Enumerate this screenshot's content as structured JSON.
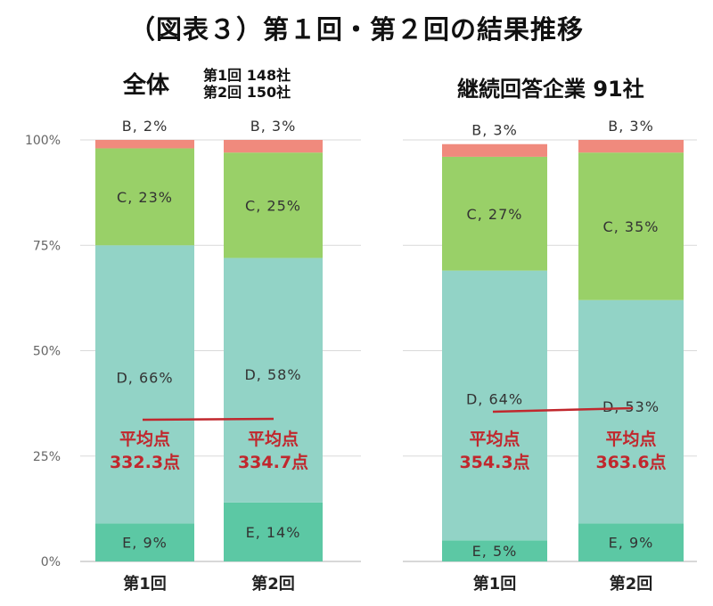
{
  "title": "（図表３）第１回・第２回の結果推移",
  "panels": [
    {
      "title": "全体",
      "sample_lines": [
        "第1回 148社",
        "第2回 150社"
      ]
    },
    {
      "title": "継続回答企業 91社",
      "sample_lines": []
    }
  ],
  "colors": {
    "E": "#5cc8a4",
    "D": "#92d3c6",
    "C": "#99d068",
    "B": "#f08a7d",
    "avg_text": "#c1272d",
    "avg_line": "#c1272d"
  },
  "chart_data": [
    {
      "type": "bar",
      "stacked": true,
      "title": "全体",
      "categories": [
        "第1回",
        "第2回"
      ],
      "ylim": [
        0,
        100
      ],
      "yticks": [
        "0%",
        "25%",
        "50%",
        "75%",
        "100%"
      ],
      "series": [
        {
          "name": "E",
          "values": [
            9,
            14
          ],
          "labels": [
            "E, 9%",
            "E, 14%"
          ]
        },
        {
          "name": "D",
          "values": [
            66,
            58
          ],
          "labels": [
            "D, 66%",
            "D, 58%"
          ]
        },
        {
          "name": "C",
          "values": [
            23,
            25
          ],
          "labels": [
            "C, 23%",
            "C, 25%"
          ]
        },
        {
          "name": "B",
          "values": [
            2,
            3
          ],
          "labels": [
            "B, 2%",
            "B, 3%"
          ]
        }
      ],
      "averages": [
        {
          "label": "平均点",
          "value": "332.3点"
        },
        {
          "label": "平均点",
          "value": "334.7点"
        }
      ]
    },
    {
      "type": "bar",
      "stacked": true,
      "title": "継続回答企業 91社",
      "categories": [
        "第1回",
        "第2回"
      ],
      "ylim": [
        0,
        100
      ],
      "series": [
        {
          "name": "E",
          "values": [
            5,
            9
          ],
          "labels": [
            "E, 5%",
            "E, 9%"
          ]
        },
        {
          "name": "D",
          "values": [
            64,
            53
          ],
          "labels": [
            "D, 64%",
            "D, 53%"
          ]
        },
        {
          "name": "C",
          "values": [
            27,
            35
          ],
          "labels": [
            "C, 27%",
            "C, 35%"
          ]
        },
        {
          "name": "B",
          "values": [
            3,
            3
          ],
          "labels": [
            "B, 3%",
            "B, 3%"
          ]
        }
      ],
      "averages": [
        {
          "label": "平均点",
          "value": "354.3点"
        },
        {
          "label": "平均点",
          "value": "363.6点"
        }
      ]
    }
  ]
}
